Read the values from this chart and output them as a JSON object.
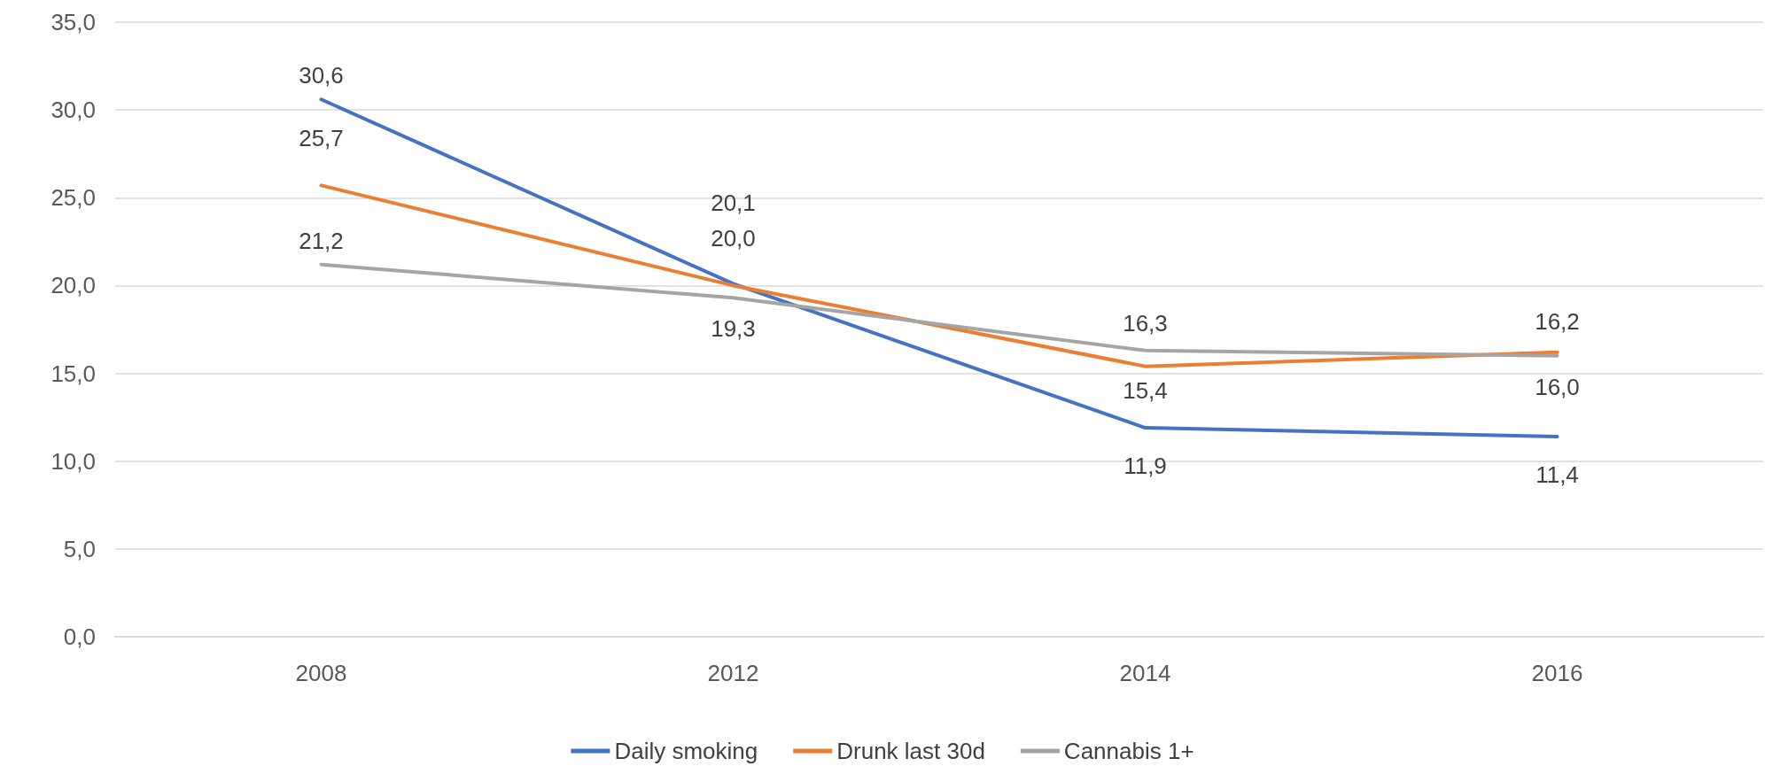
{
  "chart_data": {
    "type": "line",
    "categories": [
      "2008",
      "2012",
      "2014",
      "2016"
    ],
    "series": [
      {
        "name": "Daily smoking",
        "color": "#4472c4",
        "values": [
          30.6,
          20.1,
          11.9,
          11.4
        ],
        "value_labels": [
          "30,6",
          "20,1",
          "11,9",
          "11,4"
        ]
      },
      {
        "name": "Drunk last 30d",
        "color": "#ed7d31",
        "values": [
          25.7,
          20.0,
          15.4,
          16.2
        ],
        "value_labels": [
          "25,7",
          "20,0",
          "15,4",
          "16,2"
        ]
      },
      {
        "name": "Cannabis 1+",
        "color": "#a5a5a5",
        "values": [
          21.2,
          19.3,
          16.3,
          16.0
        ],
        "value_labels": [
          "21,2",
          "19,3",
          "16,3",
          "16,0"
        ]
      }
    ],
    "ylim": [
      0,
      35
    ],
    "yticks": [
      {
        "value": 0,
        "label": "0,0"
      },
      {
        "value": 5,
        "label": "5,0"
      },
      {
        "value": 10,
        "label": "10,0"
      },
      {
        "value": 15,
        "label": "15,0"
      },
      {
        "value": 20,
        "label": "20,0"
      },
      {
        "value": 25,
        "label": "25,0"
      },
      {
        "value": 30,
        "label": "30,0"
      },
      {
        "value": 35,
        "label": "35,0"
      }
    ],
    "grid": "y",
    "legend": "bottom",
    "marker": "none",
    "line_style": "solid"
  }
}
